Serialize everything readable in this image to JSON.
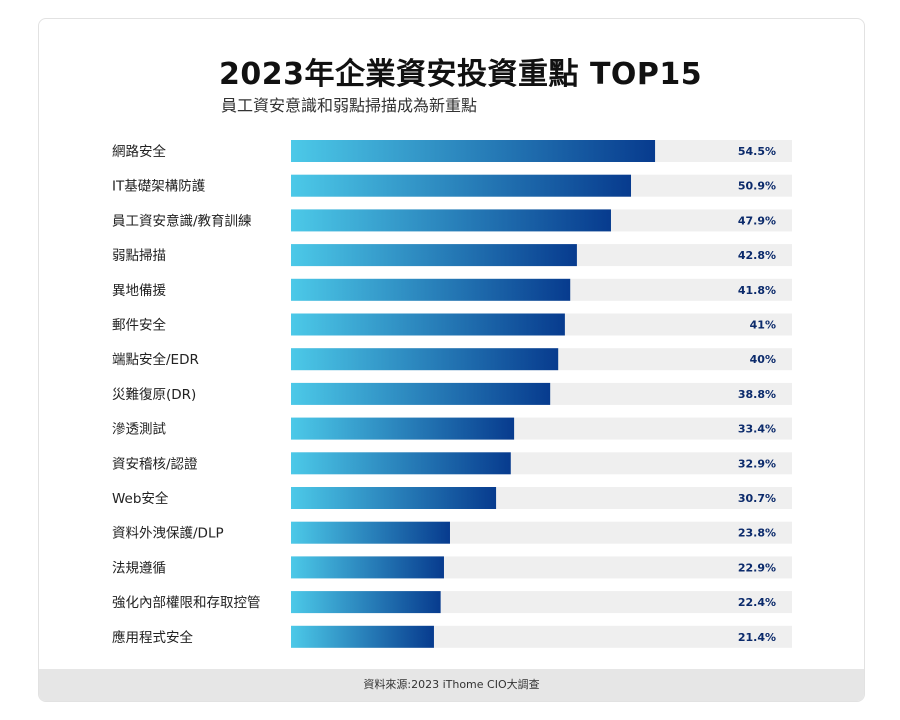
{
  "title": "2023年企業資安投資重點 TOP15",
  "subtitle": "員工資安意識和弱點掃描成為新重點",
  "source": "資料來源:2023 iThome CIO大調查",
  "colors": {
    "bar_start": "#4cc9e8",
    "bar_end": "#073b8e",
    "track": "#efefef",
    "value_text": "#0b2a6b",
    "label_text": "#222222"
  },
  "chart_data": {
    "type": "bar",
    "orientation": "horizontal",
    "categories": [
      "網路安全",
      "IT基礎架構防護",
      "員工資安意識/教育訓練",
      "弱點掃描",
      "異地備援",
      "郵件安全",
      "端點安全/EDR",
      "災難復原(DR)",
      "滲透測試",
      "資安稽核/認證",
      "Web安全",
      "資料外洩保護/DLP",
      "法規遵循",
      "強化內部權限和存取控管",
      "應用程式安全"
    ],
    "values": [
      54.5,
      50.9,
      47.9,
      42.8,
      41.8,
      41,
      40,
      38.8,
      33.4,
      32.9,
      30.7,
      23.8,
      22.9,
      22.4,
      21.4
    ],
    "value_labels": [
      "54.5%",
      "50.9%",
      "47.9%",
      "42.8%",
      "41.8%",
      "41%",
      "40%",
      "38.8%",
      "33.4%",
      "32.9%",
      "30.7%",
      "23.8%",
      "22.9%",
      "22.4%",
      "21.4%"
    ],
    "xlim": [
      0,
      75
    ],
    "title": "2023年企業資安投資重點 TOP15",
    "xlabel": "",
    "ylabel": ""
  }
}
